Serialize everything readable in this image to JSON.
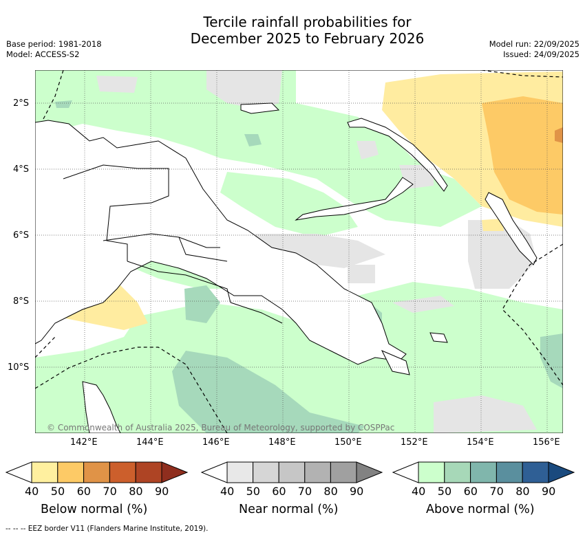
{
  "header": {
    "title_line1": "Tercile rainfall probabilities for",
    "title_line2": "December 2025 to February 2026",
    "base_period": "Base period: 1981-2018",
    "model": "Model: ACCESS-S2",
    "model_run": "Model run: 22/09/2025",
    "issued": "Issued: 24/09/2025"
  },
  "map": {
    "lat_labels": [
      "2°S",
      "4°S",
      "6°S",
      "8°S",
      "10°S"
    ],
    "lon_labels": [
      "142°E",
      "144°E",
      "146°E",
      "148°E",
      "150°E",
      "152°E",
      "154°E",
      "156°E"
    ],
    "copyright": "© Commonwealth of Australia 2025, Bureau of Meteorology, supported by COSPPac",
    "colors": {
      "ocean_bg": "#ffffff",
      "above_40": "#ccffcc",
      "above_50": "#a6d9bb",
      "near_40": "#e5e5e5",
      "below_40": "#ffeca0",
      "below_50": "#fdca66",
      "below_60": "#e09347",
      "coast": "#000000"
    }
  },
  "colorbars": [
    {
      "title": "Below normal (%)",
      "ticks": [
        "40",
        "50",
        "60",
        "70",
        "80",
        "90"
      ],
      "colors": [
        "#ffffff",
        "#fff09f",
        "#fdca66",
        "#e09347",
        "#cc5f2c",
        "#ae4424",
        "#8f2e1e"
      ]
    },
    {
      "title": "Near normal (%)",
      "ticks": [
        "40",
        "50",
        "60",
        "70",
        "80",
        "90"
      ],
      "colors": [
        "#ffffff",
        "#e8e8e8",
        "#d6d6d6",
        "#c6c6c6",
        "#b2b2b2",
        "#a0a0a0",
        "#828282"
      ]
    },
    {
      "title": "Above normal (%)",
      "ticks": [
        "40",
        "50",
        "60",
        "70",
        "80",
        "90"
      ],
      "colors": [
        "#ffffff",
        "#ccffcc",
        "#a7d8b8",
        "#80b6ac",
        "#5a8f9e",
        "#2f5f95",
        "#1a4a7e"
      ]
    }
  ],
  "footer": {
    "eez_note": "--  --  -- EEZ border V11 (Flanders Marine Institute, 2019)."
  }
}
